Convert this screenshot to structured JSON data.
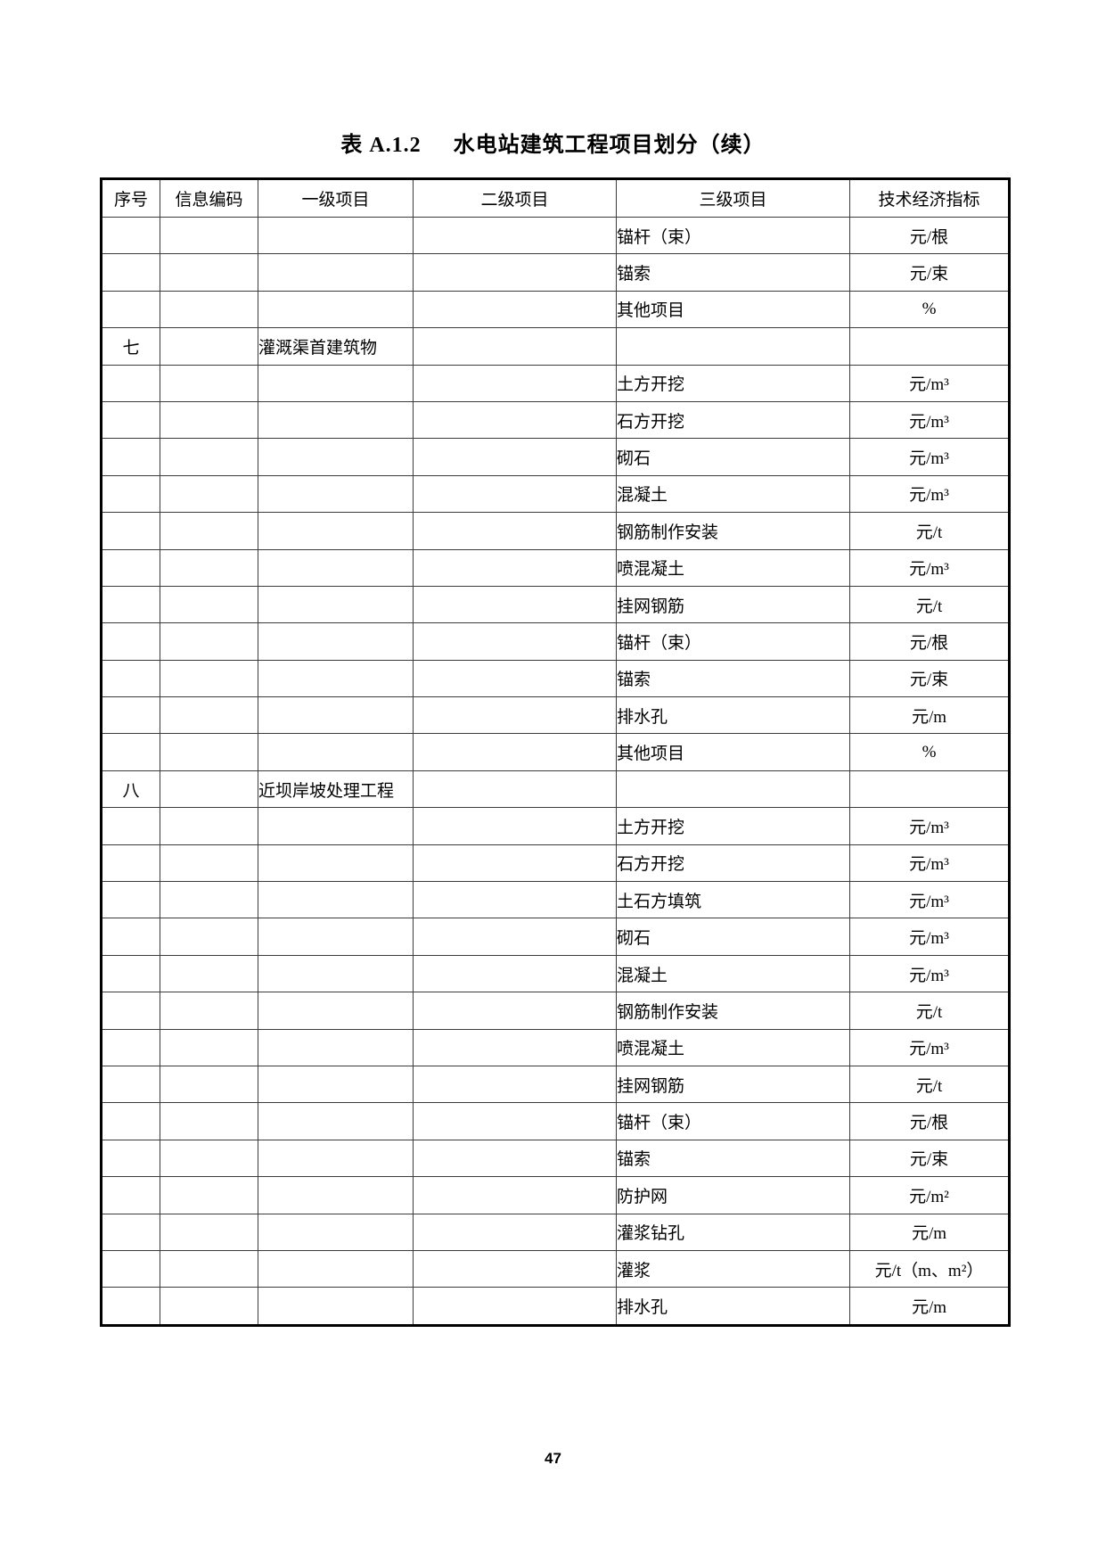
{
  "title": {
    "prefix": "表 A.1.2",
    "text": "水电站建筑工程项目划分（续）"
  },
  "table": {
    "headers": [
      "序号",
      "信息编码",
      "一级项目",
      "二级项目",
      "三级项目",
      "技术经济指标"
    ],
    "rows": [
      [
        "",
        "",
        "",
        "",
        "锚杆（束）",
        "元/根"
      ],
      [
        "",
        "",
        "",
        "",
        "锚索",
        "元/束"
      ],
      [
        "",
        "",
        "",
        "",
        "其他项目",
        "%"
      ],
      [
        "七",
        "",
        "灌溉渠首建筑物",
        "",
        "",
        ""
      ],
      [
        "",
        "",
        "",
        "",
        "土方开挖",
        "元/m³"
      ],
      [
        "",
        "",
        "",
        "",
        "石方开挖",
        "元/m³"
      ],
      [
        "",
        "",
        "",
        "",
        "砌石",
        "元/m³"
      ],
      [
        "",
        "",
        "",
        "",
        "混凝土",
        "元/m³"
      ],
      [
        "",
        "",
        "",
        "",
        "钢筋制作安装",
        "元/t"
      ],
      [
        "",
        "",
        "",
        "",
        "喷混凝土",
        "元/m³"
      ],
      [
        "",
        "",
        "",
        "",
        "挂网钢筋",
        "元/t"
      ],
      [
        "",
        "",
        "",
        "",
        "锚杆（束）",
        "元/根"
      ],
      [
        "",
        "",
        "",
        "",
        "锚索",
        "元/束"
      ],
      [
        "",
        "",
        "",
        "",
        "排水孔",
        "元/m"
      ],
      [
        "",
        "",
        "",
        "",
        "其他项目",
        "%"
      ],
      [
        "八",
        "",
        "近坝岸坡处理工程",
        "",
        "",
        ""
      ],
      [
        "",
        "",
        "",
        "",
        "土方开挖",
        "元/m³"
      ],
      [
        "",
        "",
        "",
        "",
        "石方开挖",
        "元/m³"
      ],
      [
        "",
        "",
        "",
        "",
        "土石方填筑",
        "元/m³"
      ],
      [
        "",
        "",
        "",
        "",
        "砌石",
        "元/m³"
      ],
      [
        "",
        "",
        "",
        "",
        "混凝土",
        "元/m³"
      ],
      [
        "",
        "",
        "",
        "",
        "钢筋制作安装",
        "元/t"
      ],
      [
        "",
        "",
        "",
        "",
        "喷混凝土",
        "元/m³"
      ],
      [
        "",
        "",
        "",
        "",
        "挂网钢筋",
        "元/t"
      ],
      [
        "",
        "",
        "",
        "",
        "锚杆（束）",
        "元/根"
      ],
      [
        "",
        "",
        "",
        "",
        "锚索",
        "元/束"
      ],
      [
        "",
        "",
        "",
        "",
        "防护网",
        "元/m²"
      ],
      [
        "",
        "",
        "",
        "",
        "灌浆钻孔",
        "元/m"
      ],
      [
        "",
        "",
        "",
        "",
        "灌浆",
        "元/t（m、m²）"
      ],
      [
        "",
        "",
        "",
        "",
        "排水孔",
        "元/m"
      ]
    ]
  },
  "page": {
    "number": "47"
  }
}
